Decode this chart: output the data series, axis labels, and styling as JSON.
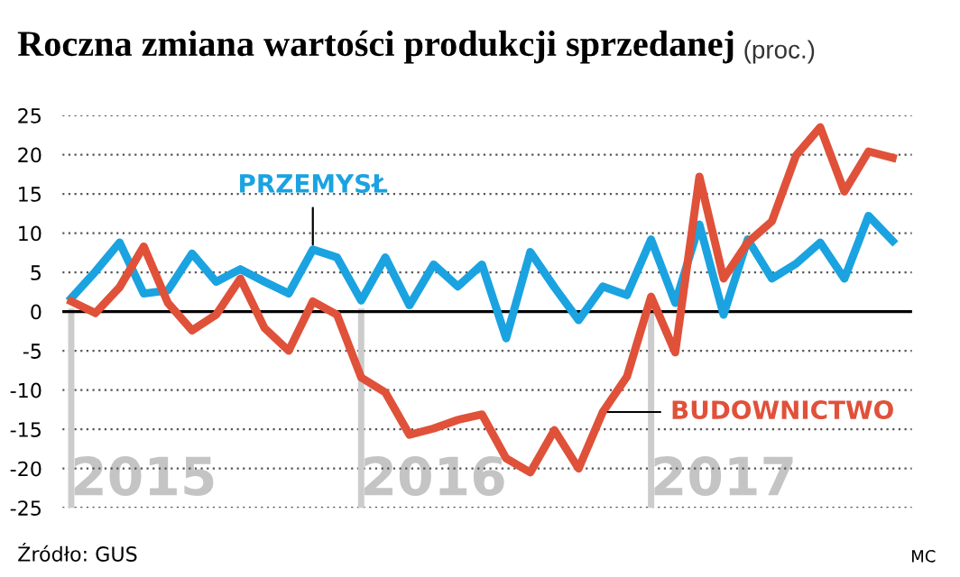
{
  "chart_data": {
    "type": "line",
    "title": "Roczna zmiana wartości produkcji sprzedanej",
    "subtitle": "(proc.)",
    "x": [
      "2015-01",
      "2015-02",
      "2015-03",
      "2015-04",
      "2015-05",
      "2015-06",
      "2015-07",
      "2015-08",
      "2015-09",
      "2015-10",
      "2015-11",
      "2015-12",
      "2016-01",
      "2016-02",
      "2016-03",
      "2016-04",
      "2016-05",
      "2016-06",
      "2016-07",
      "2016-08",
      "2016-09",
      "2016-10",
      "2016-11",
      "2016-12",
      "2017-01",
      "2017-02",
      "2017-03",
      "2017-04",
      "2017-05",
      "2017-06",
      "2017-07",
      "2017-08",
      "2017-09",
      "2017-10",
      "2017-11"
    ],
    "series": [
      {
        "name": "PRZEMYSŁ",
        "color": "#1aa3e0",
        "values": [
          1.7,
          5.1,
          8.8,
          2.3,
          2.7,
          7.4,
          3.8,
          5.4,
          3.8,
          2.3,
          7.9,
          6.9,
          1.4,
          6.9,
          0.8,
          6.0,
          3.2,
          6.0,
          -3.4,
          7.6,
          3.1,
          -1.1,
          3.2,
          2.1,
          9.2,
          1.1,
          11.1,
          -0.4,
          9.2,
          4.2,
          6.1,
          8.8,
          4.2,
          12.2,
          9.0
        ]
      },
      {
        "name": "BUDOWNICTWO",
        "color": "#e0513a",
        "values": [
          1.3,
          -0.2,
          3.1,
          8.3,
          1.1,
          -2.4,
          -0.4,
          4.2,
          -2.1,
          -5.0,
          1.3,
          -0.4,
          -8.4,
          -10.3,
          -15.7,
          -14.9,
          -13.8,
          -13.1,
          -18.7,
          -20.5,
          -15.1,
          -20.0,
          -12.8,
          -8.3,
          1.9,
          -5.2,
          17.2,
          4.2,
          8.8,
          11.5,
          19.9,
          23.5,
          15.3,
          20.4,
          19.6
        ]
      }
    ],
    "xlim": [
      "2014-12-20",
      "2017-11-25"
    ],
    "xticks": [
      {
        "value": "2015-04",
        "label": "2015"
      },
      {
        "value": "2016-04",
        "label": "2016"
      },
      {
        "value": "2017-04",
        "label": "2017"
      }
    ],
    "ylim": [
      -25,
      25
    ],
    "yticks": [
      -25,
      -20,
      -15,
      -10,
      -5,
      0,
      5,
      10,
      15,
      20,
      25
    ],
    "grid": "y",
    "marker": "none",
    "line_style": "solid",
    "ref_lines": [
      {
        "axis": "y",
        "value": 0,
        "color": "#000000"
      },
      {
        "axis": "x",
        "value": "2015-01",
        "color": "#cccccc"
      },
      {
        "axis": "x",
        "value": "2016-01",
        "color": "#cccccc"
      },
      {
        "axis": "x",
        "value": "2017-01",
        "color": "#cccccc"
      }
    ],
    "annotations": [
      "Źródło: GUS",
      "MC"
    ]
  }
}
